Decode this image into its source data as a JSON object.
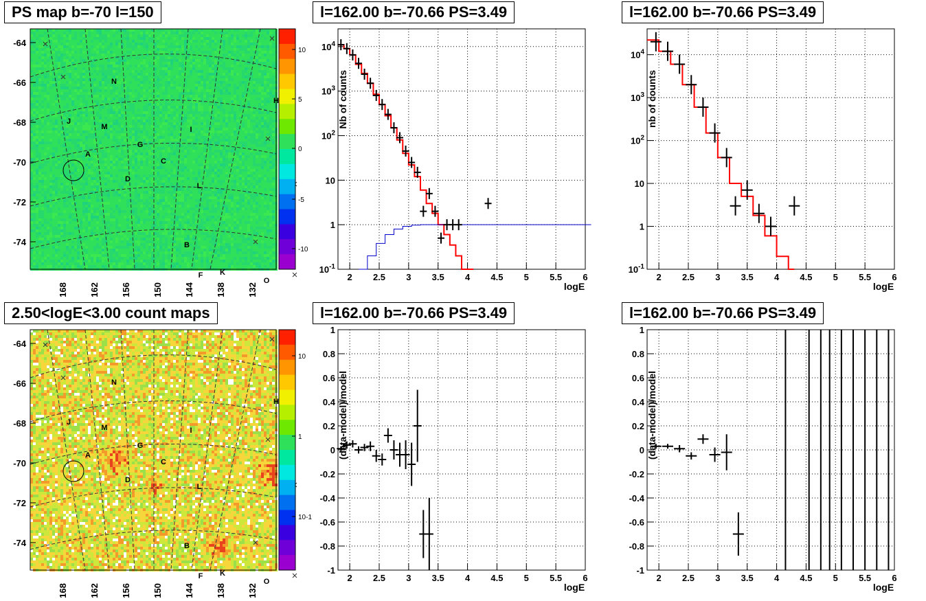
{
  "panels": {
    "map1_title": "PS map b=-70 l=150",
    "map2_title": "2.50<logE<3.00 count maps",
    "spec_title": "l=162.00 b=-70.66 PS=3.49"
  },
  "map": {
    "y_ticks": [
      "-64",
      "-66",
      "-68",
      "-70",
      "-72",
      "-74"
    ],
    "x_ticks": [
      "168",
      "162",
      "156",
      "150",
      "144",
      "138",
      "132"
    ],
    "sources": [
      "A",
      "B",
      "C",
      "D",
      "F",
      "G",
      "H",
      "I",
      "J",
      "K",
      "L",
      "M",
      "N",
      "O"
    ],
    "ps_colorbar_ticks": [
      "10",
      "5",
      "0",
      "-5",
      "-10"
    ],
    "count_colorbar_ticks": [
      "10",
      "1",
      "10-1"
    ],
    "colors": {
      "ps_bg": "#2fe05a",
      "count_bg": "#f6d63a",
      "hot": "#e8431c"
    }
  },
  "chart_data": [
    {
      "type": "line",
      "panel": "spectrum-top-middle",
      "title": "l=162.00 b=-70.66 PS=3.49",
      "xlabel": "logE",
      "ylabel": "Nb of counts",
      "xlim": [
        1.8,
        6
      ],
      "ylim": [
        0.1,
        25000
      ],
      "yscale": "log",
      "grid": true,
      "x_ticks": [
        "2",
        "2.5",
        "3",
        "3.5",
        "4",
        "4.5",
        "5",
        "5.5",
        "6"
      ],
      "y_ticks": [
        "10^-1",
        "1",
        "10",
        "10^2",
        "10^3",
        "10^4"
      ],
      "data": {
        "x": [
          1.85,
          1.95,
          2.05,
          2.15,
          2.25,
          2.35,
          2.45,
          2.55,
          2.65,
          2.75,
          2.85,
          2.95,
          3.05,
          3.15,
          3.25,
          3.35,
          3.45,
          3.55,
          3.65,
          3.75,
          3.85,
          4.35
        ],
        "y": [
          11000,
          9000,
          6500,
          4200,
          2400,
          1500,
          800,
          500,
          300,
          150,
          90,
          45,
          25,
          15,
          2,
          5,
          2,
          0.5,
          1,
          1,
          1,
          3
        ]
      },
      "model": {
        "x": [
          1.8,
          1.9,
          2.0,
          2.1,
          2.2,
          2.3,
          2.4,
          2.5,
          2.6,
          2.7,
          2.8,
          2.9,
          3.0,
          3.1,
          3.2,
          3.3,
          3.4,
          3.5,
          3.6,
          3.7,
          3.8,
          3.9,
          4.0
        ],
        "y": [
          11000,
          9000,
          6500,
          4000,
          2500,
          1500,
          850,
          500,
          280,
          150,
          80,
          40,
          22,
          12,
          6,
          3,
          1.8,
          1,
          0.6,
          0.35,
          0.2,
          0.1,
          0.1
        ]
      },
      "acceptance": {
        "x": [
          2.15,
          2.3,
          2.45,
          2.6,
          2.75,
          2.9,
          3.05,
          3.2,
          3.4,
          6.0
        ],
        "y": [
          0.1,
          0.2,
          0.38,
          0.6,
          0.8,
          0.92,
          0.98,
          1.0,
          1.0,
          1.0
        ]
      }
    },
    {
      "type": "line",
      "panel": "spectrum-top-right",
      "title": "l=162.00 b=-70.66 PS=3.49",
      "xlabel": "logE",
      "ylabel": "nb of counts",
      "xlim": [
        1.8,
        6
      ],
      "ylim": [
        0.1,
        40000
      ],
      "yscale": "log",
      "grid": true,
      "x_ticks": [
        "2",
        "2.5",
        "3",
        "3.5",
        "4",
        "4.5",
        "5",
        "5.5",
        "6"
      ],
      "y_ticks": [
        "10^-1",
        "1",
        "10",
        "10^2",
        "10^3",
        "10^4"
      ],
      "data": {
        "x": [
          1.95,
          2.15,
          2.35,
          2.55,
          2.75,
          2.95,
          3.15,
          3.3,
          3.5,
          3.7,
          3.9,
          4.3
        ],
        "y": [
          20000,
          12000,
          6000,
          2000,
          600,
          150,
          40,
          3,
          7,
          2,
          1,
          3
        ]
      },
      "model": {
        "x": [
          1.8,
          2.0,
          2.2,
          2.4,
          2.6,
          2.8,
          3.0,
          3.2,
          3.4,
          3.6,
          3.8,
          4.0,
          4.2
        ],
        "y": [
          22000,
          12000,
          6000,
          2000,
          600,
          150,
          40,
          10,
          5,
          1.8,
          0.6,
          0.2,
          0.1
        ]
      }
    },
    {
      "type": "scatter",
      "panel": "residual-bottom-middle",
      "title": "l=162.00 b=-70.66 PS=3.49",
      "xlabel": "logE",
      "ylabel": "(data-model)/model",
      "xlim": [
        1.8,
        6
      ],
      "ylim": [
        -1,
        1
      ],
      "grid": true,
      "x_ticks": [
        "2",
        "2.5",
        "3",
        "3.5",
        "4",
        "4.5",
        "5",
        "5.5",
        "6"
      ],
      "y_ticks": [
        "-1",
        "-0.8",
        "-0.6",
        "-0.4",
        "-0.2",
        "0",
        "0.2",
        "0.4",
        "0.6",
        "0.8",
        "1"
      ],
      "x": [
        1.85,
        1.95,
        2.05,
        2.15,
        2.25,
        2.35,
        2.45,
        2.55,
        2.65,
        2.75,
        2.85,
        2.95,
        3.05,
        3.15,
        3.25,
        3.35
      ],
      "y": [
        0.01,
        0.04,
        0.05,
        0.0,
        0.02,
        0.03,
        -0.05,
        -0.08,
        0.12,
        0.0,
        -0.04,
        -0.04,
        -0.12,
        0.2,
        -0.7,
        -0.7
      ],
      "err": [
        0.02,
        0.03,
        0.03,
        0.03,
        0.03,
        0.04,
        0.05,
        0.05,
        0.06,
        0.08,
        0.1,
        0.12,
        0.18,
        0.3,
        0.2,
        0.3
      ]
    },
    {
      "type": "scatter",
      "panel": "residual-bottom-right",
      "title": "l=162.00 b=-70.66 PS=3.49",
      "xlabel": "logE",
      "ylabel": "(data-model)/model",
      "xlim": [
        1.8,
        6
      ],
      "ylim": [
        -1,
        1
      ],
      "grid": true,
      "x_ticks": [
        "2",
        "2.5",
        "3",
        "3.5",
        "4",
        "4.5",
        "5",
        "5.5",
        "6"
      ],
      "y_ticks": [
        "-1",
        "-0.8",
        "-0.6",
        "-0.4",
        "-0.2",
        "0",
        "0.2",
        "0.4",
        "0.6",
        "0.8",
        "1"
      ],
      "x": [
        1.95,
        2.15,
        2.35,
        2.55,
        2.75,
        2.95,
        3.15,
        3.35
      ],
      "y": [
        0.03,
        0.03,
        0.01,
        -0.05,
        0.09,
        -0.04,
        -0.02,
        -0.7
      ],
      "err": [
        0.02,
        0.02,
        0.03,
        0.03,
        0.04,
        0.06,
        0.15,
        0.18
      ],
      "full_bars_x": [
        4.15,
        4.55,
        4.75,
        4.9,
        5.1,
        5.3,
        5.5,
        5.7,
        5.9
      ]
    }
  ]
}
